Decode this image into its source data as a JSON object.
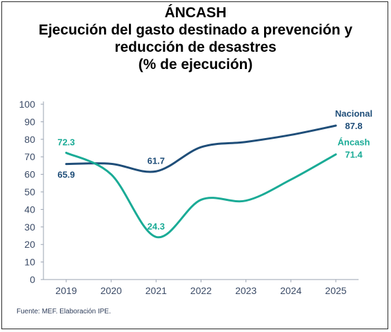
{
  "title": {
    "line1": "ÁNCASH",
    "line2": "Ejecución del gasto destinado a prevención y",
    "line3": "reducción de desastres",
    "line4": "(% de ejecución)"
  },
  "source": "Fuente: MEF. Elaboración IPE.",
  "colors": {
    "nacional": "#1f4e79",
    "ancash": "#1aab96",
    "axis_text": "#3a4a66",
    "grid": "#d9dde3"
  },
  "chart_data": {
    "type": "line",
    "title": "Ejecución del gasto destinado a prevención y reducción de desastres (% de ejecución)",
    "x": [
      "2019",
      "2020",
      "2021",
      "2022",
      "2023",
      "2024",
      "2025"
    ],
    "yticks": [
      "0",
      "10",
      "20",
      "30",
      "40",
      "50",
      "60",
      "70",
      "80",
      "90",
      "100"
    ],
    "ylim": [
      0,
      100
    ],
    "grid": false,
    "legend": "inline-right",
    "series": [
      {
        "name": "Nacional",
        "color": "#1f4e79",
        "values": [
          65.9,
          66.0,
          61.7,
          75.5,
          78.5,
          82.5,
          87.8
        ],
        "labels": [
          {
            "index": 0,
            "text": "65.9",
            "pos": "below"
          },
          {
            "index": 2,
            "text": "61.7",
            "pos": "above"
          },
          {
            "index": 6,
            "text": "87.8",
            "pos": "right"
          }
        ]
      },
      {
        "name": "Áncash",
        "color": "#1aab96",
        "values": [
          72.3,
          60.0,
          24.3,
          45.5,
          45.0,
          57.0,
          71.4
        ],
        "labels": [
          {
            "index": 0,
            "text": "72.3",
            "pos": "above"
          },
          {
            "index": 2,
            "text": "24.3",
            "pos": "above"
          },
          {
            "index": 6,
            "text": "71.4",
            "pos": "right"
          }
        ]
      }
    ]
  }
}
